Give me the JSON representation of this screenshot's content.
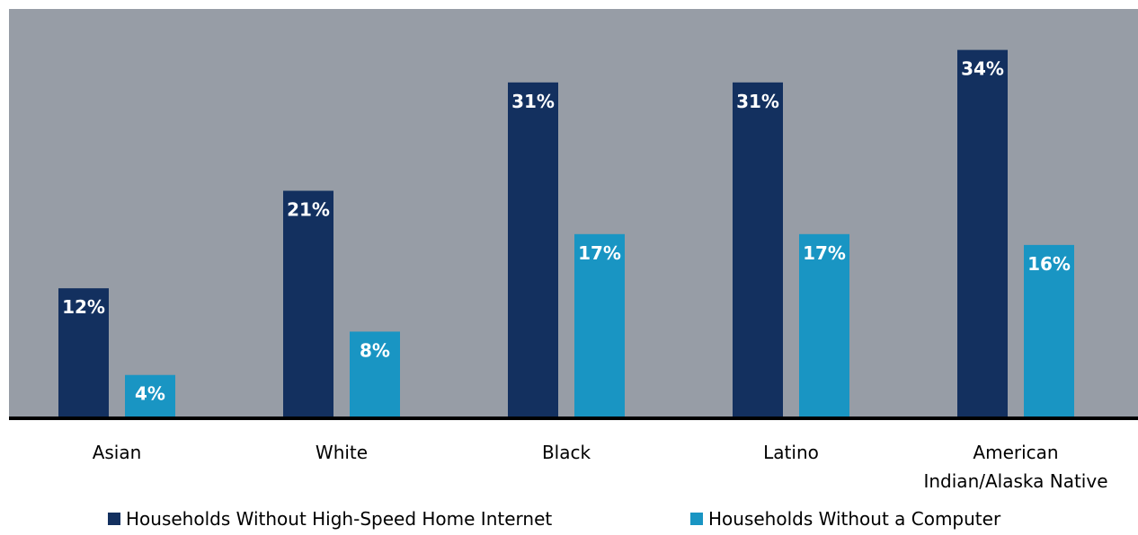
{
  "chart_data": {
    "type": "bar",
    "title": "",
    "xlabel": "",
    "ylabel": "",
    "ylim": [
      0,
      36
    ],
    "grid": false,
    "legend_position": "bottom",
    "background_color": "#979da6",
    "baseline_color": "#000000",
    "categories": [
      "Asian",
      "White",
      "Black",
      "Latino",
      "American Indian/Alaska Native"
    ],
    "category_lines": [
      [
        "Asian"
      ],
      [
        "White"
      ],
      [
        "Black"
      ],
      [
        "Latino"
      ],
      [
        "American",
        "Indian/Alaska Native"
      ]
    ],
    "series": [
      {
        "name": "Households Without High-Speed Home Internet",
        "color": "#13305f",
        "values": [
          12,
          21,
          31,
          31,
          34
        ],
        "labels": [
          "12%",
          "21%",
          "31%",
          "31%",
          "34%"
        ]
      },
      {
        "name": "Households Without a Computer",
        "color": "#1995c3",
        "values": [
          4,
          8,
          17,
          17,
          16
        ],
        "labels": [
          "4%",
          "8%",
          "17%",
          "17%",
          "16%"
        ]
      }
    ]
  }
}
